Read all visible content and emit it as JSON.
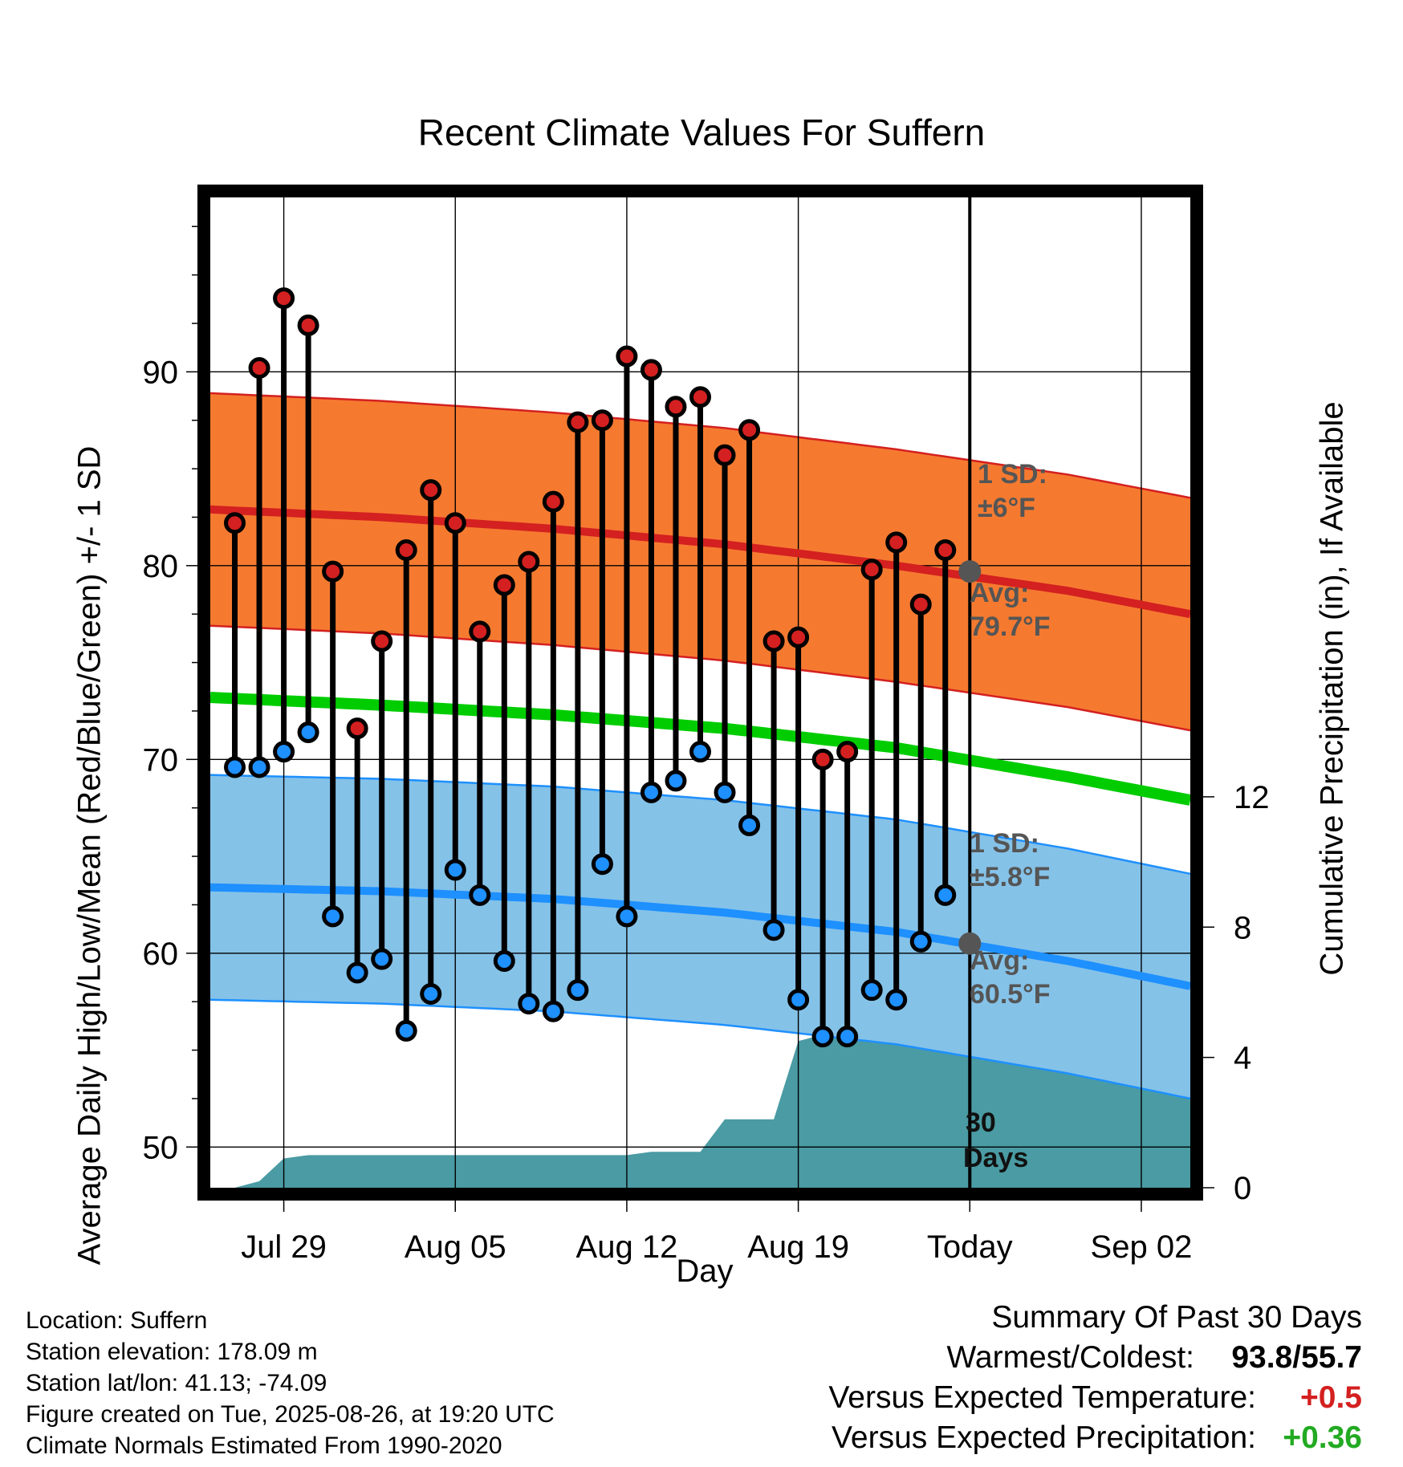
{
  "chart_data": {
    "type": "line",
    "title": "Recent Climate Values For Suffern",
    "xlabel": "Day",
    "ylabel": "Average Daily High/Low/Mean (Red/Blue/Green) +/- 1 SD",
    "y2label": "Cumulative Precipitation (in), If Available",
    "x_ticks": [
      "Jul 29",
      "Aug 05",
      "Aug 12",
      "Aug 19",
      "Today",
      "Sep 02"
    ],
    "x_start": "Jul 26",
    "x_today": "Aug 26",
    "x_end": "Sep 04",
    "ylim": [
      47.9,
      99.0
    ],
    "y_ticks": [
      50,
      60,
      70,
      80,
      90
    ],
    "y2lim": [
      0,
      30.4
    ],
    "y2_ticks": [
      0,
      4,
      8,
      12
    ],
    "grid": true,
    "high_temps": [
      82.2,
      90.2,
      93.8,
      92.4,
      79.7,
      71.6,
      76.1,
      80.8,
      83.9,
      82.2,
      76.6,
      79.0,
      80.2,
      83.3,
      87.4,
      87.5,
      90.8,
      90.1,
      88.2,
      88.7,
      85.7,
      87.0,
      76.1,
      76.3,
      70.0,
      70.4,
      79.8,
      81.2,
      78.0,
      80.8
    ],
    "low_temps": [
      69.6,
      69.6,
      70.4,
      71.4,
      61.9,
      59.0,
      59.7,
      56.0,
      57.9,
      64.3,
      63.0,
      59.6,
      57.4,
      57.0,
      58.1,
      64.6,
      61.9,
      68.3,
      68.9,
      70.4,
      68.3,
      66.6,
      61.2,
      57.6,
      55.7,
      55.7,
      58.1,
      57.6,
      60.6,
      63.0
    ],
    "normals": {
      "days": [
        0,
        7,
        14,
        21,
        28,
        35,
        40
      ],
      "high_mean": [
        82.9,
        82.5,
        81.9,
        81.1,
        80.0,
        78.7,
        77.5
      ],
      "high_sd": 6,
      "low_mean": [
        63.4,
        63.2,
        62.8,
        62.1,
        61.1,
        59.6,
        58.3
      ],
      "low_sd": 5.8,
      "mean": [
        73.2,
        72.8,
        72.3,
        71.6,
        70.6,
        69.1,
        67.9
      ]
    },
    "precip_cumulative": [
      0,
      0,
      0.2,
      0.9,
      1.0,
      1.0,
      1.0,
      1.0,
      1.0,
      1.0,
      1.0,
      1.0,
      1.0,
      1.0,
      1.0,
      1.0,
      1.0,
      1.0,
      1.1,
      1.1,
      1.1,
      2.1,
      2.1,
      2.1,
      4.5,
      4.7,
      4.7,
      4.7,
      4.7,
      4.7,
      4.7,
      4.7,
      4.7,
      4.7,
      4.7,
      4.7,
      4.7,
      4.7,
      4.7,
      4.7,
      4.7
    ],
    "annotations": {
      "high_sd_label": "1 SD:",
      "high_sd_value": "±6°F",
      "high_avg_label": "Avg:",
      "high_avg_value": "79.7°F",
      "low_sd_label": "1 SD:",
      "low_sd_value": "±5.8°F",
      "low_avg_label": "Avg:",
      "low_avg_value": "60.5°F",
      "today_avg_high": 79.7,
      "today_avg_low": 60.5,
      "days_count": "30",
      "days_label": "Days"
    },
    "colors": {
      "high_band": "#f57a30",
      "high_line": "#d42020",
      "low_band": "#85c2e8",
      "low_line": "#1e90ff",
      "mean_line": "#00cc00",
      "precip": "#4a9ba3",
      "high_dot": "#d42020",
      "low_dot": "#1e90ff",
      "avg_dot": "#555555"
    }
  },
  "info": {
    "location": "Location: Suffern",
    "elevation": "Station elevation: 178.09 m",
    "latlon": "Station lat/lon: 41.13; -74.09",
    "created": "Figure created on Tue, 2025-08-26, at 19:20 UTC",
    "normals": "Climate Normals Estimated From 1990-2020"
  },
  "summary": {
    "title": "Summary Of Past 30 Days",
    "warm_cold_label": "Warmest/Coldest:",
    "warm_cold_value": "93.8/55.7",
    "temp_label": "Versus Expected Temperature:",
    "temp_value": "+0.5",
    "temp_color": "#d42020",
    "precip_label": "Versus Expected Precipitation:",
    "precip_value": "+0.36",
    "precip_color": "#22aa22"
  }
}
